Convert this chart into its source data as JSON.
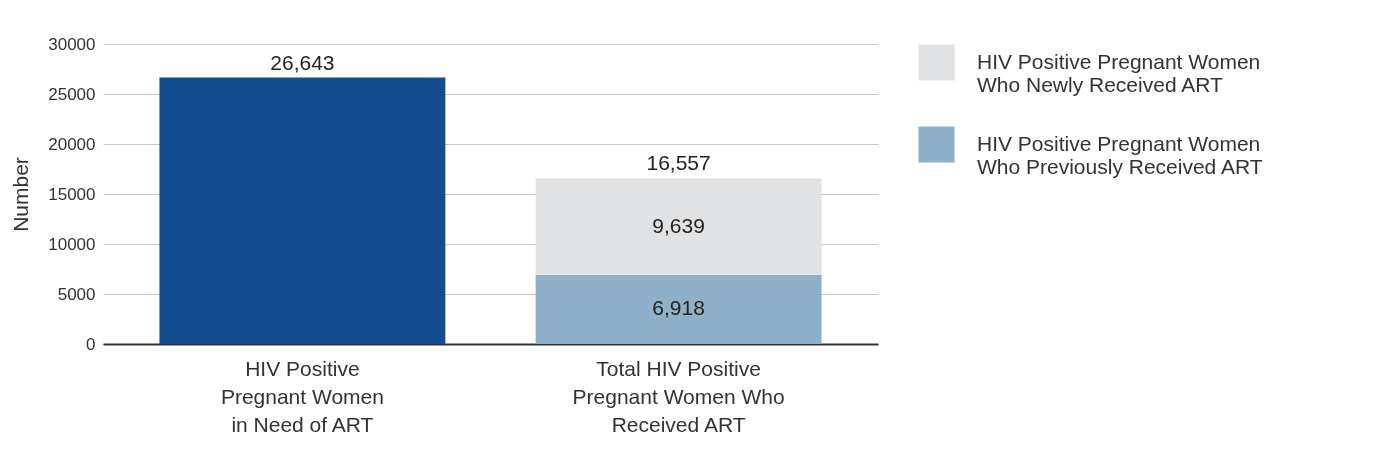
{
  "chart_data": {
    "type": "bar",
    "stacked": true,
    "categories": [
      "HIV Positive Pregnant Women in Need of ART",
      "Total HIV Positive Pregnant Women Who Received ART"
    ],
    "ylabel": "Number",
    "ylim": [
      0,
      30000
    ],
    "yticks": [
      0,
      5000,
      10000,
      15000,
      20000,
      25000,
      30000
    ],
    "grid": "y",
    "legend": "right",
    "series": [
      {
        "color": "#134d8f",
        "values": [
          26643,
          null
        ]
      },
      {
        "name": "HIV Positive Pregnant Women Who Previously Received ART",
        "color": "#8fb0c9",
        "values": [
          null,
          6918
        ],
        "value_labels": [
          null,
          "6,918"
        ]
      },
      {
        "name": "HIV Positive Pregnant Women Who Newly Received ART",
        "color": "#e1e2e4",
        "values": [
          null,
          9639
        ],
        "value_labels": [
          null,
          "9,639"
        ]
      }
    ],
    "totals": [
      "26,643",
      "16,557"
    ]
  }
}
